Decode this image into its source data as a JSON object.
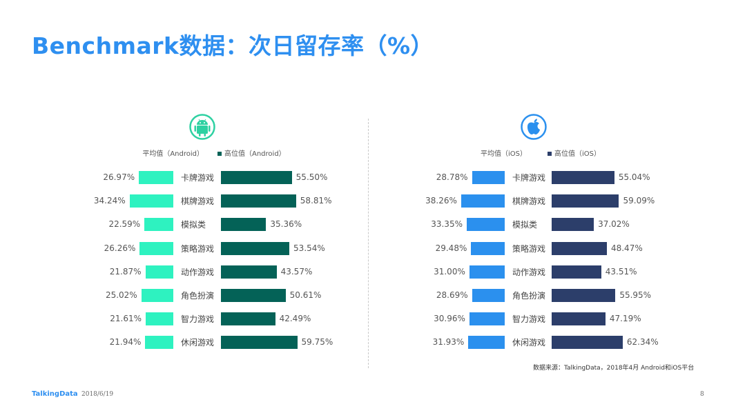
{
  "page": {
    "title": "Benchmark数据：次日留存率（%）",
    "source": "数据来源：TalkingData，2018年4月 Android和iOS平台",
    "footer_logo": "TalkingData",
    "footer_date": "2018/6/19",
    "page_number": "8"
  },
  "colors": {
    "title": "#2e8ff0",
    "android_avg": "#2ef2c0",
    "android_median": "#046257",
    "ios_avg": "#2b90ee",
    "ios_median": "#2c3e6a",
    "android_icon": "#2ed1a2",
    "ios_icon": "#2b90ee"
  },
  "chart_data": [
    {
      "type": "bar",
      "platform_icon": "android-icon",
      "categories": [
        "卡牌游戏",
        "棋牌游戏",
        "模拟类",
        "策略游戏",
        "动作游戏",
        "角色扮演",
        "智力游戏",
        "休闲游戏"
      ],
      "series": [
        {
          "name": "平均值（Android）",
          "values": [
            26.97,
            34.24,
            22.59,
            26.26,
            21.87,
            25.02,
            21.61,
            21.94
          ],
          "labels": [
            "26.97%",
            "34.24%",
            "22.59%",
            "26.26%",
            "21.87%",
            "25.02%",
            "21.61%",
            "21.94%"
          ]
        },
        {
          "name": "高位值（Android）",
          "values": [
            55.5,
            58.81,
            35.36,
            53.54,
            43.57,
            50.61,
            42.49,
            59.75
          ],
          "labels": [
            "55.50%",
            "58.81%",
            "35.36%",
            "53.54%",
            "43.57%",
            "50.61%",
            "42.49%",
            "59.75%"
          ]
        }
      ]
    },
    {
      "type": "bar",
      "platform_icon": "apple-icon",
      "categories": [
        "卡牌游戏",
        "棋牌游戏",
        "模拟类",
        "策略游戏",
        "动作游戏",
        "角色扮演",
        "智力游戏",
        "休闲游戏"
      ],
      "series": [
        {
          "name": "平均值（iOS）",
          "values": [
            28.78,
            38.26,
            33.35,
            29.48,
            31.0,
            28.69,
            30.96,
            31.93
          ],
          "labels": [
            "28.78%",
            "38.26%",
            "33.35%",
            "29.48%",
            "31.00%",
            "28.69%",
            "30.96%",
            "31.93%"
          ]
        },
        {
          "name": "高位值（iOS）",
          "values": [
            55.04,
            59.09,
            37.02,
            48.47,
            43.51,
            55.95,
            47.19,
            62.34
          ],
          "labels": [
            "55.04%",
            "59.09%",
            "37.02%",
            "48.47%",
            "43.51%",
            "55.95%",
            "47.19%",
            "62.34%"
          ]
        }
      ]
    }
  ]
}
